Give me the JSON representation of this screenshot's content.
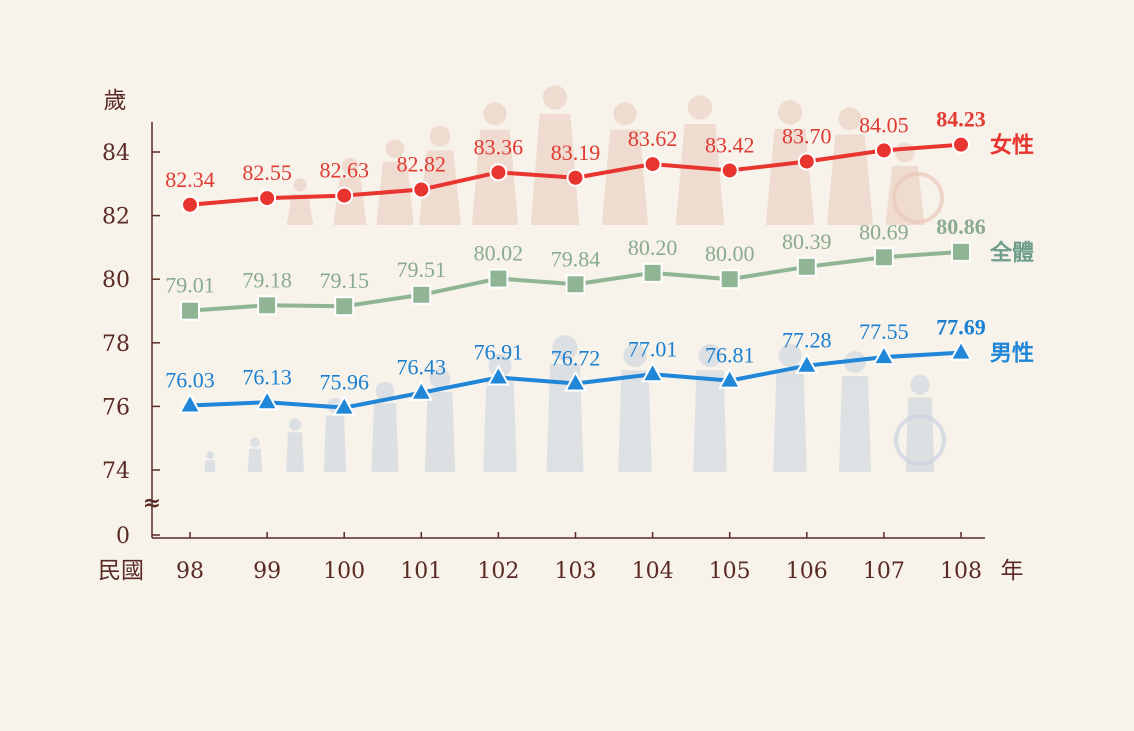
{
  "chart_data": {
    "type": "line",
    "y_unit": "歲",
    "x_prefix": "民國",
    "x_unit": "年",
    "categories": [
      "98",
      "99",
      "100",
      "101",
      "102",
      "103",
      "104",
      "105",
      "106",
      "107",
      "108"
    ],
    "yticks": [
      "0",
      "74",
      "76",
      "78",
      "80",
      "82",
      "84"
    ],
    "ylim": [
      74,
      84.9
    ],
    "axis_break": "≈",
    "series": [
      {
        "key": "female",
        "name": "女性",
        "marker": "circle",
        "color": "#e8352f",
        "label_color": "#e03a32",
        "values": [
          82.34,
          82.55,
          82.63,
          82.82,
          83.36,
          83.19,
          83.62,
          83.42,
          83.7,
          84.05,
          84.23
        ],
        "labels": [
          "82.34",
          "82.55",
          "82.63",
          "82.82",
          "83.36",
          "83.19",
          "83.62",
          "83.42",
          "83.70",
          "84.05",
          "84.23"
        ]
      },
      {
        "key": "total",
        "name": "全體",
        "marker": "square",
        "color": "#8fb595",
        "label_color": "#8aab8e",
        "name_color": "#6f9f8c",
        "values": [
          79.01,
          79.18,
          79.15,
          79.51,
          80.02,
          79.84,
          80.2,
          80.0,
          80.39,
          80.69,
          80.86
        ],
        "labels": [
          "79.01",
          "79.18",
          "79.15",
          "79.51",
          "80.02",
          "79.84",
          "80.20",
          "80.00",
          "80.39",
          "80.69",
          "80.86"
        ]
      },
      {
        "key": "male",
        "name": "男性",
        "marker": "triangle",
        "color": "#1f86d8",
        "label_color": "#1a7fd0",
        "values": [
          76.03,
          76.13,
          75.96,
          76.43,
          76.91,
          76.72,
          77.01,
          76.81,
          77.28,
          77.55,
          77.69
        ],
        "labels": [
          "76.03",
          "76.13",
          "75.96",
          "76.43",
          "76.91",
          "76.72",
          "77.01",
          "76.81",
          "77.28",
          "77.55",
          "77.69"
        ]
      }
    ],
    "grid": false,
    "legend": "right-inline"
  },
  "colors": {
    "axis": "#5a2a24",
    "background": "#f7f2ea"
  }
}
